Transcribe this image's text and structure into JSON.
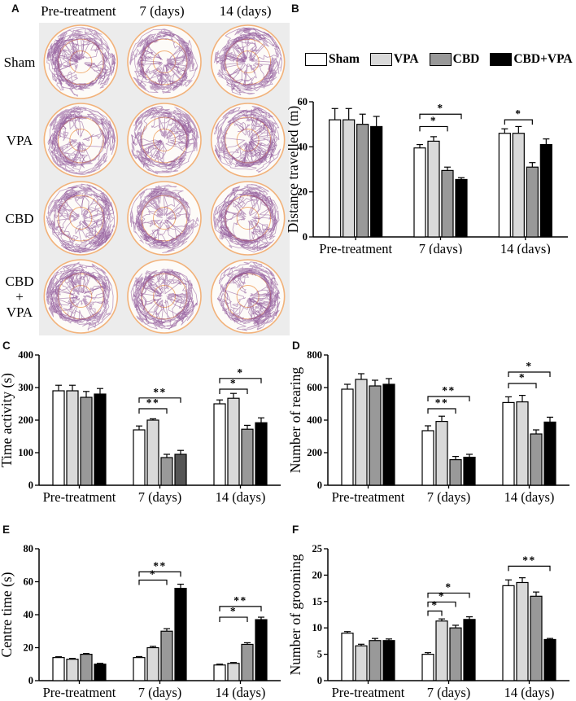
{
  "letters": {
    "a": "A",
    "b": "B",
    "c": "C",
    "d": "D",
    "e": "E",
    "f": "F"
  },
  "panel_a": {
    "column_headers": [
      "Pre-treatment",
      "7 (days)",
      "14 (days)"
    ],
    "row_labels": [
      "Sham",
      "VPA",
      "CBD",
      "CBD + VPA"
    ],
    "trace_color": "#7d3c8a",
    "arena_ring_color": "#f2b27a",
    "background_color": "#ececec"
  },
  "legend": {
    "items": [
      {
        "label": "Sham",
        "color": "#ffffff"
      },
      {
        "label": "VPA",
        "color": "#d9d9d9"
      },
      {
        "label": "CBD",
        "color": "#999999"
      },
      {
        "label": "CBD+VPA",
        "color": "#000000"
      }
    ]
  },
  "chart_data": [
    {
      "id": "B",
      "type": "bar",
      "ylabel": "Distance travelled (m)",
      "ylim": [
        0,
        60
      ],
      "yticks": [
        0,
        20,
        40,
        60
      ],
      "categories": [
        "Pre-treatment",
        "7 (days)",
        "14 (days)"
      ],
      "series": [
        {
          "name": "Sham",
          "values": [
            52,
            39.5,
            46
          ],
          "errors": [
            5,
            1.5,
            2
          ]
        },
        {
          "name": "VPA",
          "values": [
            52,
            42.5,
            46
          ],
          "errors": [
            5,
            2,
            3
          ]
        },
        {
          "name": "CBD",
          "values": [
            50,
            29.5,
            31
          ],
          "errors": [
            4.5,
            1.5,
            2
          ]
        },
        {
          "name": "CBD+VPA",
          "values": [
            49,
            25.5,
            41
          ],
          "errors": [
            4.5,
            0.8,
            2.5
          ]
        }
      ],
      "significance": [
        {
          "category": 1,
          "from": 0,
          "to": 2,
          "label": "*",
          "y": 49
        },
        {
          "category": 1,
          "from": 0,
          "to": 3,
          "label": "*",
          "y": 54.5
        },
        {
          "category": 2,
          "from": 0,
          "to": 2,
          "label": "*",
          "y": 52
        }
      ]
    },
    {
      "id": "C",
      "type": "bar",
      "ylabel": "Time activity (s)",
      "ylim": [
        0,
        400
      ],
      "yticks": [
        0,
        100,
        200,
        300,
        400
      ],
      "categories": [
        "Pre-treatment",
        "7 (days)",
        "14 (days)"
      ],
      "series": [
        {
          "name": "Sham",
          "values": [
            290,
            170,
            250
          ],
          "errors": [
            17,
            12,
            12
          ]
        },
        {
          "name": "VPA",
          "values": [
            290,
            200,
            267
          ],
          "errors": [
            17,
            4,
            15
          ]
        },
        {
          "name": "CBD",
          "values": [
            270,
            85,
            172
          ],
          "errors": [
            18,
            10,
            12
          ]
        },
        {
          "name": "CBD+VPA",
          "values": [
            280,
            95,
            192
          ],
          "errors": [
            17,
            12,
            15
          ]
        }
      ],
      "bar_overrides": [
        {
          "category": 1,
          "series": 3,
          "color": "#555555"
        }
      ],
      "significance": [
        {
          "category": 1,
          "from": 0,
          "to": 2,
          "label": "**",
          "y": 235
        },
        {
          "category": 1,
          "from": 0,
          "to": 3,
          "label": "**",
          "y": 268
        },
        {
          "category": 2,
          "from": 0,
          "to": 2,
          "label": "*",
          "y": 295
        },
        {
          "category": 2,
          "from": 0,
          "to": 3,
          "label": "*",
          "y": 328
        }
      ]
    },
    {
      "id": "D",
      "type": "bar",
      "ylabel": "Number of rearing",
      "ylim": [
        0,
        800
      ],
      "yticks": [
        0,
        200,
        400,
        600,
        800
      ],
      "categories": [
        "Pre-treatment",
        "7 (days)",
        "14 (days)"
      ],
      "series": [
        {
          "name": "Sham",
          "values": [
            590,
            335,
            508
          ],
          "errors": [
            30,
            30,
            35
          ]
        },
        {
          "name": "VPA",
          "values": [
            650,
            392,
            512
          ],
          "errors": [
            35,
            32,
            40
          ]
        },
        {
          "name": "CBD",
          "values": [
            610,
            157,
            315
          ],
          "errors": [
            35,
            20,
            25
          ]
        },
        {
          "name": "CBD+VPA",
          "values": [
            620,
            172,
            388
          ],
          "errors": [
            35,
            18,
            30
          ]
        }
      ],
      "significance": [
        {
          "category": 1,
          "from": 0,
          "to": 2,
          "label": "**",
          "y": 470
        },
        {
          "category": 1,
          "from": 0,
          "to": 3,
          "label": "**",
          "y": 545
        },
        {
          "category": 2,
          "from": 0,
          "to": 2,
          "label": "*",
          "y": 625
        },
        {
          "category": 2,
          "from": 0,
          "to": 3,
          "label": "*",
          "y": 695
        }
      ]
    },
    {
      "id": "E",
      "type": "bar",
      "ylabel": "Centre time (s)",
      "ylim": [
        0,
        80
      ],
      "yticks": [
        0,
        20,
        40,
        60,
        80
      ],
      "categories": [
        "Pre-treatment",
        "7 (days)",
        "14 (days)"
      ],
      "series": [
        {
          "name": "Sham",
          "values": [
            14,
            14,
            9.5
          ],
          "errors": [
            0.5,
            0.6,
            0.5
          ]
        },
        {
          "name": "VPA",
          "values": [
            13,
            20,
            10.5
          ],
          "errors": [
            0.5,
            0.8,
            0.5
          ]
        },
        {
          "name": "CBD",
          "values": [
            16,
            30,
            22
          ],
          "errors": [
            0.5,
            1.5,
            1
          ]
        },
        {
          "name": "CBD+VPA",
          "values": [
            10,
            56,
            37
          ],
          "errors": [
            0.5,
            2.5,
            1.5
          ]
        }
      ],
      "significance": [
        {
          "category": 1,
          "from": 0,
          "to": 2,
          "label": "*",
          "y": 61
        },
        {
          "category": 1,
          "from": 0,
          "to": 3,
          "label": "**",
          "y": 66
        },
        {
          "category": 2,
          "from": 0,
          "to": 2,
          "label": "*",
          "y": 38.5
        },
        {
          "category": 2,
          "from": 0,
          "to": 3,
          "label": "**",
          "y": 45
        }
      ]
    },
    {
      "id": "F",
      "type": "bar",
      "ylabel": "Number of grooming",
      "ylim": [
        0,
        25
      ],
      "yticks": [
        0,
        5,
        10,
        15,
        20,
        25
      ],
      "categories": [
        "Pre-treatment",
        "7 (days)",
        "14 (days)"
      ],
      "series": [
        {
          "name": "Sham",
          "values": [
            9,
            5,
            18
          ],
          "errors": [
            0.3,
            0.3,
            1.1
          ]
        },
        {
          "name": "VPA",
          "values": [
            6.6,
            11.3,
            18.6
          ],
          "errors": [
            0.3,
            0.4,
            0.9
          ]
        },
        {
          "name": "CBD",
          "values": [
            7.6,
            10,
            16
          ],
          "errors": [
            0.4,
            0.5,
            0.8
          ]
        },
        {
          "name": "CBD+VPA",
          "values": [
            7.6,
            11.6,
            7.8
          ],
          "errors": [
            0.3,
            0.5,
            0.2
          ]
        }
      ],
      "significance": [
        {
          "category": 1,
          "from": 0,
          "to": 1,
          "label": "*",
          "y": 13.2
        },
        {
          "category": 1,
          "from": 0,
          "to": 2,
          "label": "*",
          "y": 14.9
        },
        {
          "category": 1,
          "from": 0,
          "to": 3,
          "label": "*",
          "y": 16.6
        },
        {
          "category": 2,
          "from": 0,
          "to": 3,
          "label": "**",
          "y": 21.7
        }
      ]
    }
  ]
}
